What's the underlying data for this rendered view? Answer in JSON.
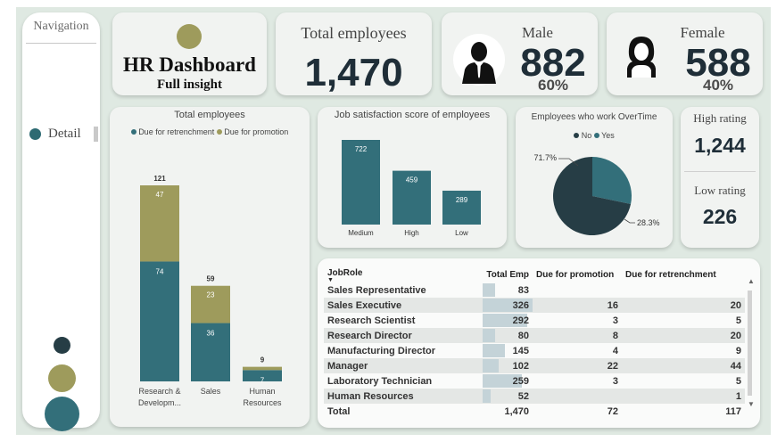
{
  "nav": {
    "title": "Navigation",
    "detail_label": "Detail"
  },
  "header": {
    "title": "HR Dashboard",
    "subtitle": "Full insight"
  },
  "total": {
    "label": "Total employees",
    "value": "1,470"
  },
  "male": {
    "label": "Male",
    "value": "882",
    "pct": "60%"
  },
  "female": {
    "label": "Female",
    "value": "588",
    "pct": "40%"
  },
  "rating": {
    "high_label": "High rating",
    "high_value": "1,244",
    "low_label": "Low rating",
    "low_value": "226"
  },
  "colors": {
    "olive": "#9e9b5c",
    "teal": "#336f7a",
    "dark": "#263d45"
  },
  "chart_data": [
    {
      "type": "bar",
      "stacked": true,
      "title": "Total employees",
      "categories": [
        "Research & Developm...",
        "Sales",
        "Human Resources"
      ],
      "series": [
        {
          "name": "Due for retrenchment",
          "values": [
            74,
            36,
            7
          ]
        },
        {
          "name": "Due for promotion",
          "values": [
            47,
            23,
            2
          ]
        }
      ],
      "totals": [
        121,
        59,
        9
      ],
      "legend": "top"
    },
    {
      "type": "bar",
      "title": "Job satisfaction score of employees",
      "categories": [
        "Medium",
        "High",
        "Low"
      ],
      "values": [
        722,
        459,
        289
      ]
    },
    {
      "type": "pie",
      "title": "Employees who work OverTime",
      "labels": [
        "No",
        "Yes"
      ],
      "values": [
        71.7,
        28.3
      ],
      "value_labels": [
        "71.7%",
        "28.3%"
      ],
      "legend": "top"
    }
  ],
  "table": {
    "headers": [
      "JobRole",
      "Total Emp",
      "Due for promotion",
      "Due for retrenchment"
    ],
    "rows": [
      [
        "Sales Representative",
        "83",
        "",
        ""
      ],
      [
        "Sales Executive",
        "326",
        "16",
        "20"
      ],
      [
        "Research Scientist",
        "292",
        "3",
        "5"
      ],
      [
        "Research Director",
        "80",
        "8",
        "20"
      ],
      [
        "Manufacturing Director",
        "145",
        "4",
        "9"
      ],
      [
        "Manager",
        "102",
        "22",
        "44"
      ],
      [
        "Laboratory Technician",
        "259",
        "3",
        "5"
      ],
      [
        "Human Resources",
        "52",
        "",
        "1"
      ]
    ],
    "total_row": [
      "Total",
      "1,470",
      "72",
      "117"
    ]
  }
}
